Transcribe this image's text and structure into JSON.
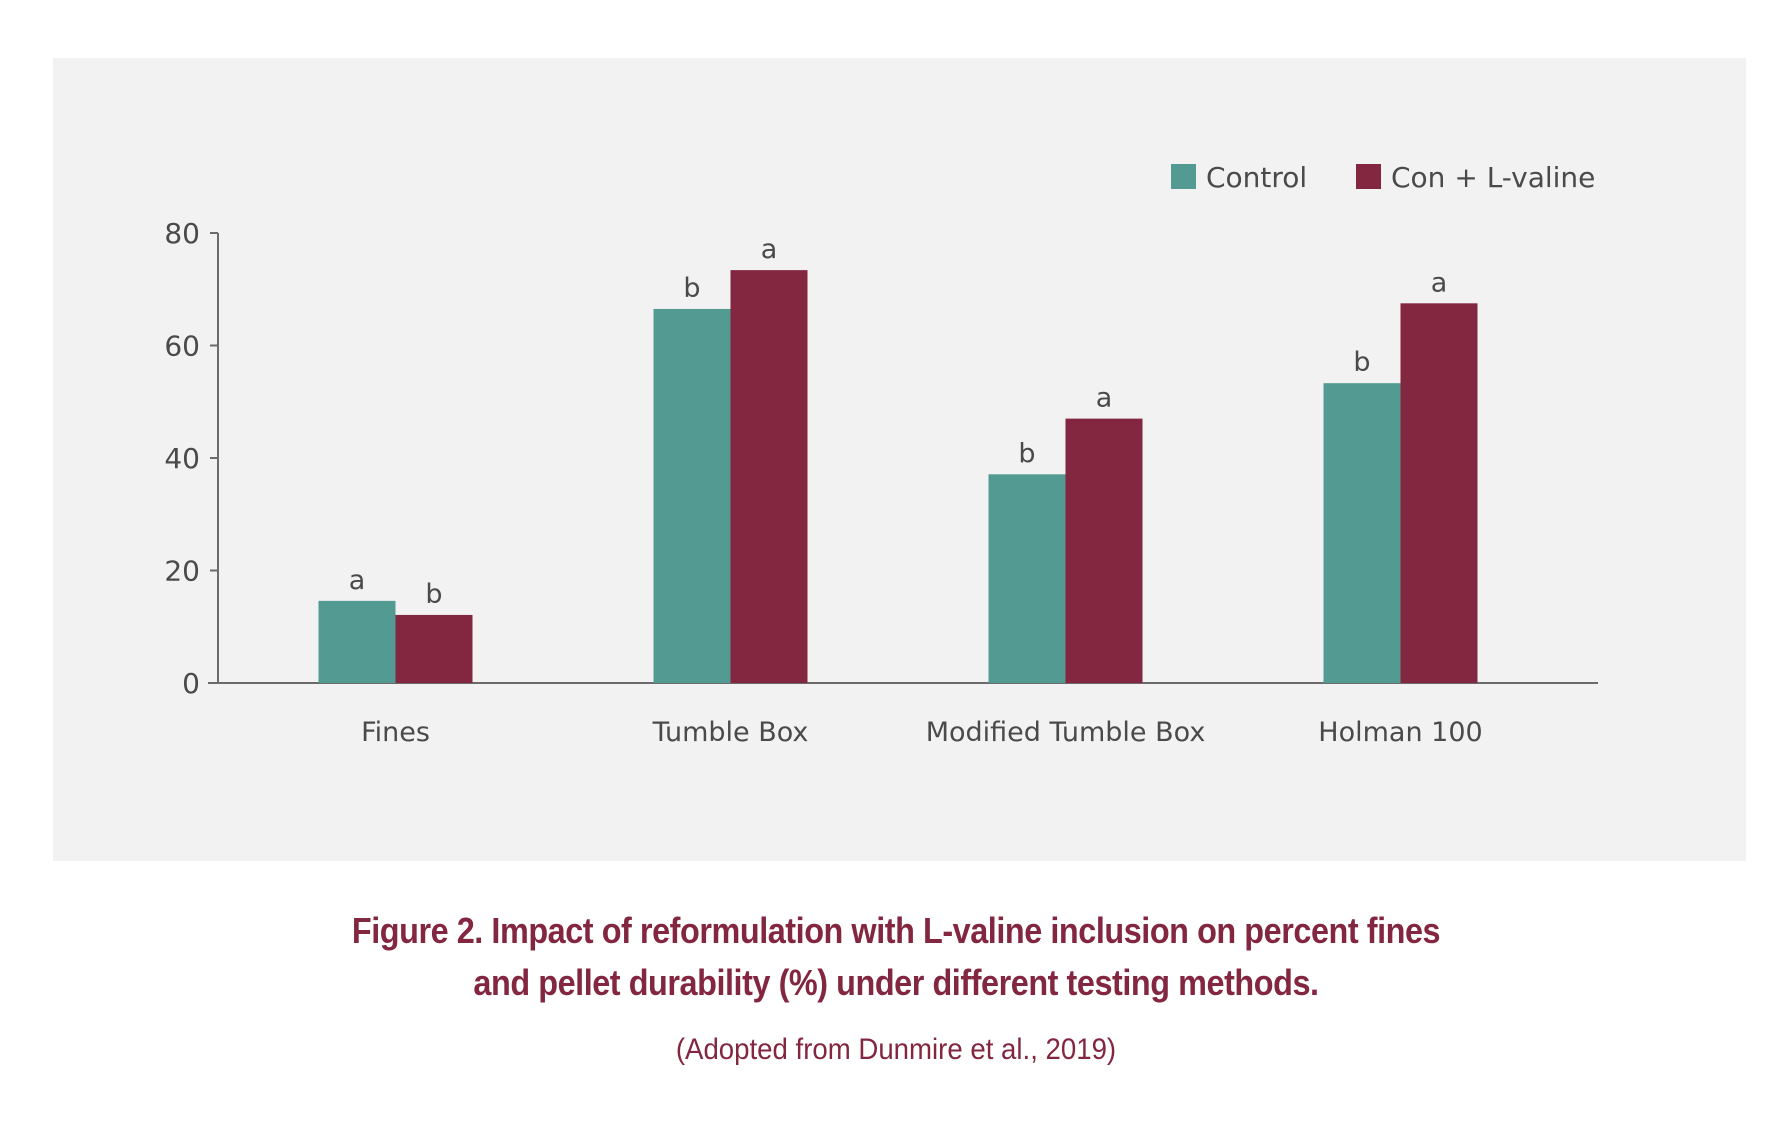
{
  "chart_data": {
    "type": "bar",
    "title": "Figure 2. Impact of reformulation with L-valine inclusion on percent fines and pellet durability (%) under different testing methods.",
    "subtitle": "(Adopted from Dunmire et al., 2019)",
    "xlabel": "",
    "ylabel": "",
    "ylim": [
      0,
      80
    ],
    "yticks": [
      0,
      20,
      40,
      60,
      80
    ],
    "grid": false,
    "legend_position": "top-right",
    "categories": [
      "Fines",
      "Tumble Box",
      "Modified Tumble Box",
      "Holman 100"
    ],
    "series": [
      {
        "name": "Control",
        "color": "#529a92",
        "values": [
          14.6,
          66.5,
          37.1,
          53.3
        ],
        "labels": [
          "a",
          "b",
          "b",
          "b"
        ]
      },
      {
        "name": "Con + L-valine",
        "color": "#832640",
        "values": [
          12.1,
          73.4,
          47.0,
          67.5
        ],
        "labels": [
          "b",
          "a",
          "a",
          "a"
        ]
      }
    ]
  },
  "caption": {
    "line1": "Figure 2. Impact of reformulation with L-valine inclusion on percent fines",
    "line2": "and pellet durability (%) under different testing methods.",
    "source": "(Adopted from Dunmire et al., 2019)"
  }
}
